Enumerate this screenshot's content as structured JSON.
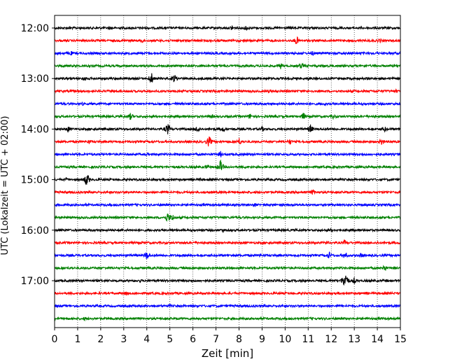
{
  "chart_data": {
    "type": "line",
    "title": "",
    "xlabel": "Zeit  [min]",
    "ylabel": "UTC (Lokalzeit = UTC + 02:00)",
    "xlim": [
      0,
      15
    ],
    "x_ticks": [
      "0",
      "1",
      "2",
      "3",
      "4",
      "5",
      "6",
      "7",
      "8",
      "9",
      "10",
      "11",
      "12",
      "13",
      "14",
      "15"
    ],
    "y_tick_labels": [
      "12:00",
      "13:00",
      "14:00",
      "15:00",
      "16:00",
      "17:00"
    ],
    "y_tick_rows": [
      0,
      4,
      8,
      12,
      16,
      20
    ],
    "grid": "vertical dotted at each minute",
    "colors": [
      "#000000",
      "#ff0000",
      "#0000ff",
      "#008000"
    ],
    "traces": [
      {
        "start": "12:00",
        "color": "#000000",
        "events": [
          [
            7.7,
            5
          ],
          [
            8.3,
            5
          ],
          [
            2.4,
            3
          ]
        ]
      },
      {
        "start": "12:15",
        "color": "#ff0000",
        "events": [
          [
            3.8,
            4
          ],
          [
            10.5,
            7
          ],
          [
            14.1,
            4
          ]
        ]
      },
      {
        "start": "12:30",
        "color": "#0000ff",
        "events": [
          [
            0.7,
            4
          ],
          [
            11.2,
            4
          ],
          [
            14.0,
            3
          ]
        ]
      },
      {
        "start": "12:45",
        "color": "#008000",
        "events": [
          [
            9.8,
            5
          ],
          [
            10.7,
            5
          ],
          [
            13.4,
            3
          ]
        ]
      },
      {
        "start": "13:00",
        "color": "#000000",
        "events": [
          [
            4.2,
            9
          ],
          [
            5.2,
            7
          ],
          [
            1.3,
            4
          ],
          [
            11.0,
            3
          ]
        ]
      },
      {
        "start": "13:15",
        "color": "#ff0000",
        "events": [
          [
            9.3,
            3
          ],
          [
            14.8,
            3
          ]
        ]
      },
      {
        "start": "13:30",
        "color": "#0000ff",
        "events": [
          [
            1.2,
            3
          ],
          [
            11.7,
            3
          ]
        ]
      },
      {
        "start": "13:45",
        "color": "#008000",
        "events": [
          [
            3.3,
            6
          ],
          [
            6.8,
            4
          ],
          [
            8.5,
            5
          ],
          [
            10.8,
            6
          ],
          [
            12.1,
            4
          ]
        ]
      },
      {
        "start": "14:00",
        "color": "#000000",
        "events": [
          [
            0.6,
            5
          ],
          [
            4.9,
            9
          ],
          [
            6.2,
            6
          ],
          [
            7.3,
            5
          ],
          [
            9.0,
            4
          ],
          [
            11.1,
            7
          ],
          [
            14.3,
            5
          ]
        ]
      },
      {
        "start": "14:15",
        "color": "#ff0000",
        "events": [
          [
            1.5,
            4
          ],
          [
            6.7,
            9
          ],
          [
            8.0,
            6
          ],
          [
            10.2,
            5
          ],
          [
            14.2,
            6
          ]
        ]
      },
      {
        "start": "14:30",
        "color": "#0000ff",
        "events": [
          [
            4.0,
            3
          ],
          [
            7.2,
            5
          ]
        ]
      },
      {
        "start": "14:45",
        "color": "#008000",
        "events": [
          [
            7.2,
            10
          ],
          [
            6.6,
            4
          ],
          [
            8.3,
            3
          ]
        ]
      },
      {
        "start": "15:00",
        "color": "#000000",
        "events": [
          [
            1.4,
            10
          ],
          [
            0.5,
            3
          ],
          [
            6.3,
            3
          ]
        ]
      },
      {
        "start": "15:15",
        "color": "#ff0000",
        "events": [
          [
            11.2,
            5
          ]
        ]
      },
      {
        "start": "15:30",
        "color": "#0000ff",
        "events": [
          [
            8.7,
            3
          ]
        ]
      },
      {
        "start": "15:45",
        "color": "#008000",
        "events": [
          [
            4.9,
            8
          ],
          [
            5.1,
            6
          ]
        ]
      },
      {
        "start": "16:00",
        "color": "#000000",
        "events": [
          [
            7.3,
            4
          ],
          [
            12.0,
            3
          ]
        ]
      },
      {
        "start": "16:15",
        "color": "#ff0000",
        "events": [
          [
            6.1,
            3
          ],
          [
            11.8,
            4
          ],
          [
            12.6,
            5
          ],
          [
            14.0,
            3
          ]
        ]
      },
      {
        "start": "16:30",
        "color": "#0000ff",
        "events": [
          [
            4.0,
            7
          ],
          [
            11.9,
            6
          ],
          [
            12.6,
            6
          ],
          [
            13.3,
            4
          ],
          [
            8.9,
            3
          ]
        ]
      },
      {
        "start": "16:45",
        "color": "#008000",
        "events": [
          [
            14.3,
            6
          ],
          [
            9.9,
            3
          ]
        ]
      },
      {
        "start": "17:00",
        "color": "#000000",
        "events": [
          [
            12.6,
            14
          ],
          [
            13.0,
            5
          ],
          [
            3.7,
            3
          ],
          [
            14.4,
            3
          ]
        ]
      },
      {
        "start": "17:15",
        "color": "#ff0000",
        "events": [
          [
            3.1,
            4
          ]
        ]
      },
      {
        "start": "17:30",
        "color": "#0000ff",
        "events": [
          [
            5.0,
            3
          ]
        ]
      },
      {
        "start": "17:45",
        "color": "#008000",
        "events": [
          [
            1.3,
            3
          ]
        ]
      }
    ]
  }
}
